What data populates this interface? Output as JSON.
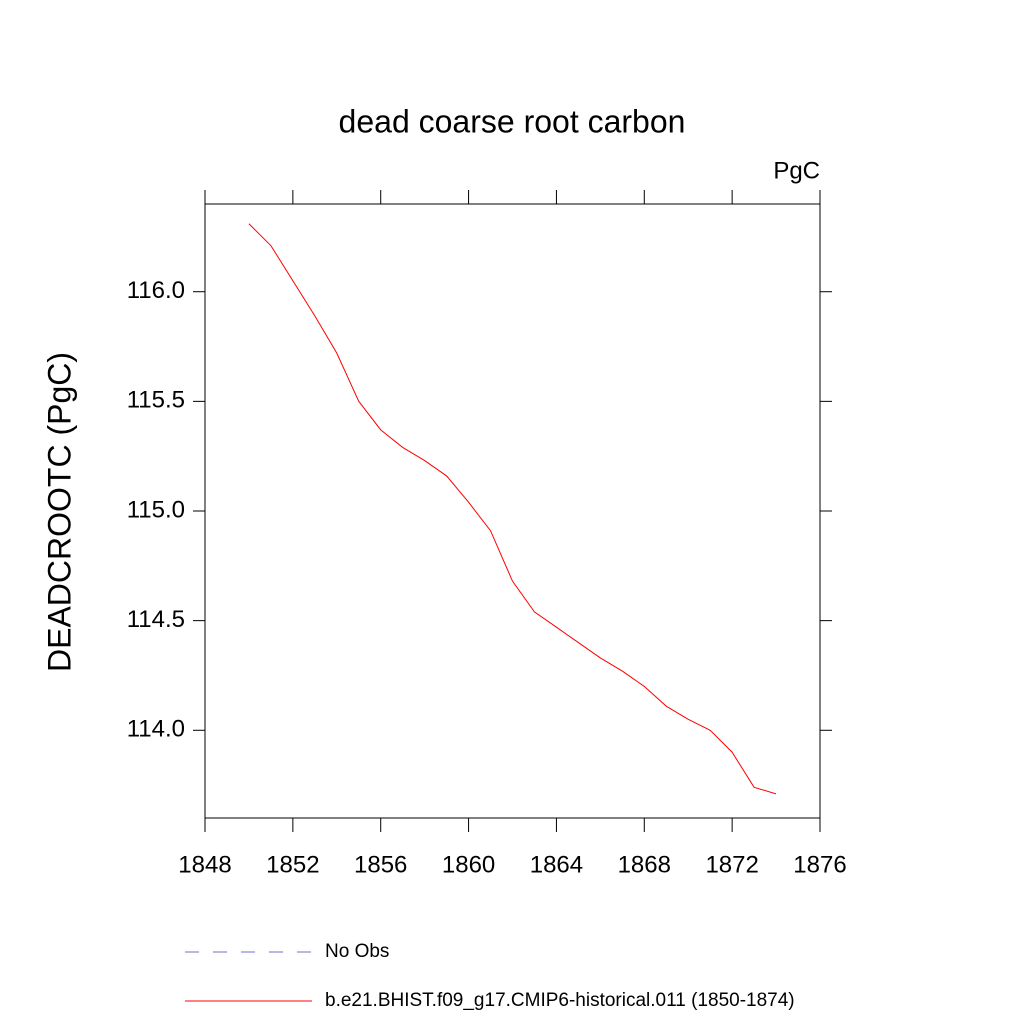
{
  "chart_data": {
    "type": "line",
    "title": "dead coarse root carbon",
    "units": "PgC",
    "y_label": "DEADCROOTC  (PgC)",
    "x": [
      1850,
      1851,
      1852,
      1853,
      1854,
      1855,
      1856,
      1857,
      1858,
      1859,
      1860,
      1861,
      1862,
      1863,
      1864,
      1865,
      1866,
      1867,
      1868,
      1869,
      1870,
      1871,
      1872,
      1873,
      1874
    ],
    "series": [
      {
        "name": "No Obs",
        "color": "#7070c8",
        "dashed": true,
        "values": [
          null,
          null,
          null,
          null,
          null,
          null,
          null,
          null,
          null,
          null,
          null,
          null,
          null,
          null,
          null,
          null,
          null,
          null,
          null,
          null,
          null,
          null,
          null,
          null,
          null
        ]
      },
      {
        "name": "b.e21.BHIST.f09_g17.CMIP6-historical.011 (1850-1874)",
        "color": "#ff0000",
        "dashed": false,
        "values": [
          116.31,
          116.21,
          116.05,
          115.89,
          115.72,
          115.5,
          115.37,
          115.29,
          115.23,
          115.16,
          115.04,
          114.91,
          114.68,
          114.54,
          114.47,
          114.4,
          114.33,
          114.27,
          114.2,
          114.11,
          114.05,
          114.0,
          113.9,
          113.74,
          113.71
        ]
      }
    ],
    "xlim": [
      1848,
      1876
    ],
    "xticks": [
      1848,
      1852,
      1856,
      1860,
      1864,
      1868,
      1872,
      1876
    ],
    "ylim": [
      113.6,
      116.4
    ],
    "yticks": [
      {
        "value": 114,
        "label": "114.0"
      },
      114.5,
      {
        "value": 115,
        "label": "115.0"
      },
      115.5,
      {
        "value": 116,
        "label": "116.0"
      }
    ],
    "grid": false
  }
}
